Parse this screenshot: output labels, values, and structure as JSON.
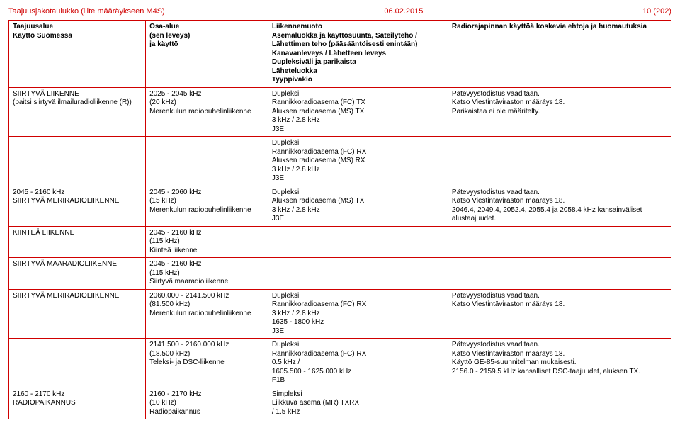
{
  "header": {
    "left": "Taajuusjakotaulukko (liite määräykseen M4S)",
    "center": "06.02.2015",
    "right": "10 (202)"
  },
  "columns": {
    "c1": "Taajuusalue\nKäyttö Suomessa",
    "c2": "Osa-alue\n(sen leveys)\nja käyttö",
    "c3": "Liikennemuoto\nAsemaluokka ja käyttösuunta, Säteilyteho / Lähettimen teho (pääsääntöisesti enintään)\nKanavanleveys / Lähetteen leveys\nDupleksiväli ja parikaista\nLäheteluokka\nTyyppivakio",
    "c4": "Radiorajapinnan käyttöä koskevia ehtoja ja huomautuksia"
  },
  "rows": [
    {
      "c1": "SIIRTYVÄ LIIKENNE\n(paitsi siirtyvä ilmailuradioliikenne (R))",
      "c2": "2025 - 2045 kHz\n(20 kHz)\nMerenkulun radiopuhelinliikenne",
      "c3": "Dupleksi\nRannikkoradioasema (FC) TX\nAluksen radioasema (MS) TX\n3 kHz / 2.8 kHz\nJ3E",
      "c4": "Pätevyystodistus vaaditaan.\nKatso Viestintäviraston määräys 18.\nParikaistaa ei ole määritelty."
    },
    {
      "c1": "",
      "c2": "",
      "c3": "Dupleksi\nRannikkoradioasema (FC) RX\nAluksen radioasema (MS) RX\n3 kHz / 2.8 kHz\nJ3E",
      "c4": ""
    },
    {
      "c1": "2045 - 2160 kHz\nSIIRTYVÄ MERIRADIOLIIKENNE",
      "c2": "2045 - 2060 kHz\n(15 kHz)\nMerenkulun radiopuhelinliikenne",
      "c3": "Dupleksi\nAluksen radioasema (MS) TX\n3 kHz / 2.8 kHz\nJ3E",
      "c4": "Pätevyystodistus vaaditaan.\nKatso Viestintäviraston määräys 18.\n2046.4, 2049.4, 2052.4, 2055.4 ja 2058.4 kHz kansainväliset alustaajuudet."
    },
    {
      "c1": "KIINTEÄ LIIKENNE",
      "c2": "2045 - 2160 kHz\n(115 kHz)\nKiinteä liikenne",
      "c3": "",
      "c4": ""
    },
    {
      "c1": "SIIRTYVÄ MAARADIOLIIKENNE",
      "c2": "2045 - 2160 kHz\n(115 kHz)\nSiirtyvä maaradioliikenne",
      "c3": "",
      "c4": ""
    },
    {
      "c1": "SIIRTYVÄ MERIRADIOLIIKENNE",
      "c2": "2060.000 - 2141.500 kHz\n(81.500 kHz)\nMerenkulun radiopuhelinliikenne",
      "c3": "Dupleksi\nRannikkoradioasema (FC) RX\n3 kHz / 2.8 kHz\n1635 - 1800 kHz\nJ3E",
      "c4": "Pätevyystodistus vaaditaan.\nKatso Viestintäviraston määräys 18."
    },
    {
      "c1": "",
      "c2": "2141.500 - 2160.000 kHz\n(18.500 kHz)\nTeleksi- ja DSC-liikenne",
      "c3": "Dupleksi\nRannikkoradioasema (FC) RX\n0.5 kHz /\n1605.500 - 1625.000 kHz\nF1B",
      "c4": "Pätevyystodistus vaaditaan.\nKatso Viestintäviraston määräys 18.\nKäyttö GE-85-suunnitelman mukaisesti.\n2156.0 - 2159.5 kHz kansalliset DSC-taajuudet, aluksen TX."
    },
    {
      "c1": "2160 - 2170 kHz\nRADIOPAIKANNUS",
      "c2": "2160 - 2170 kHz\n(10 kHz)\nRadiopaikannus",
      "c3": "Simpleksi\nLiikkuva asema (MR) TXRX\n / 1.5 kHz",
      "c4": ""
    }
  ]
}
